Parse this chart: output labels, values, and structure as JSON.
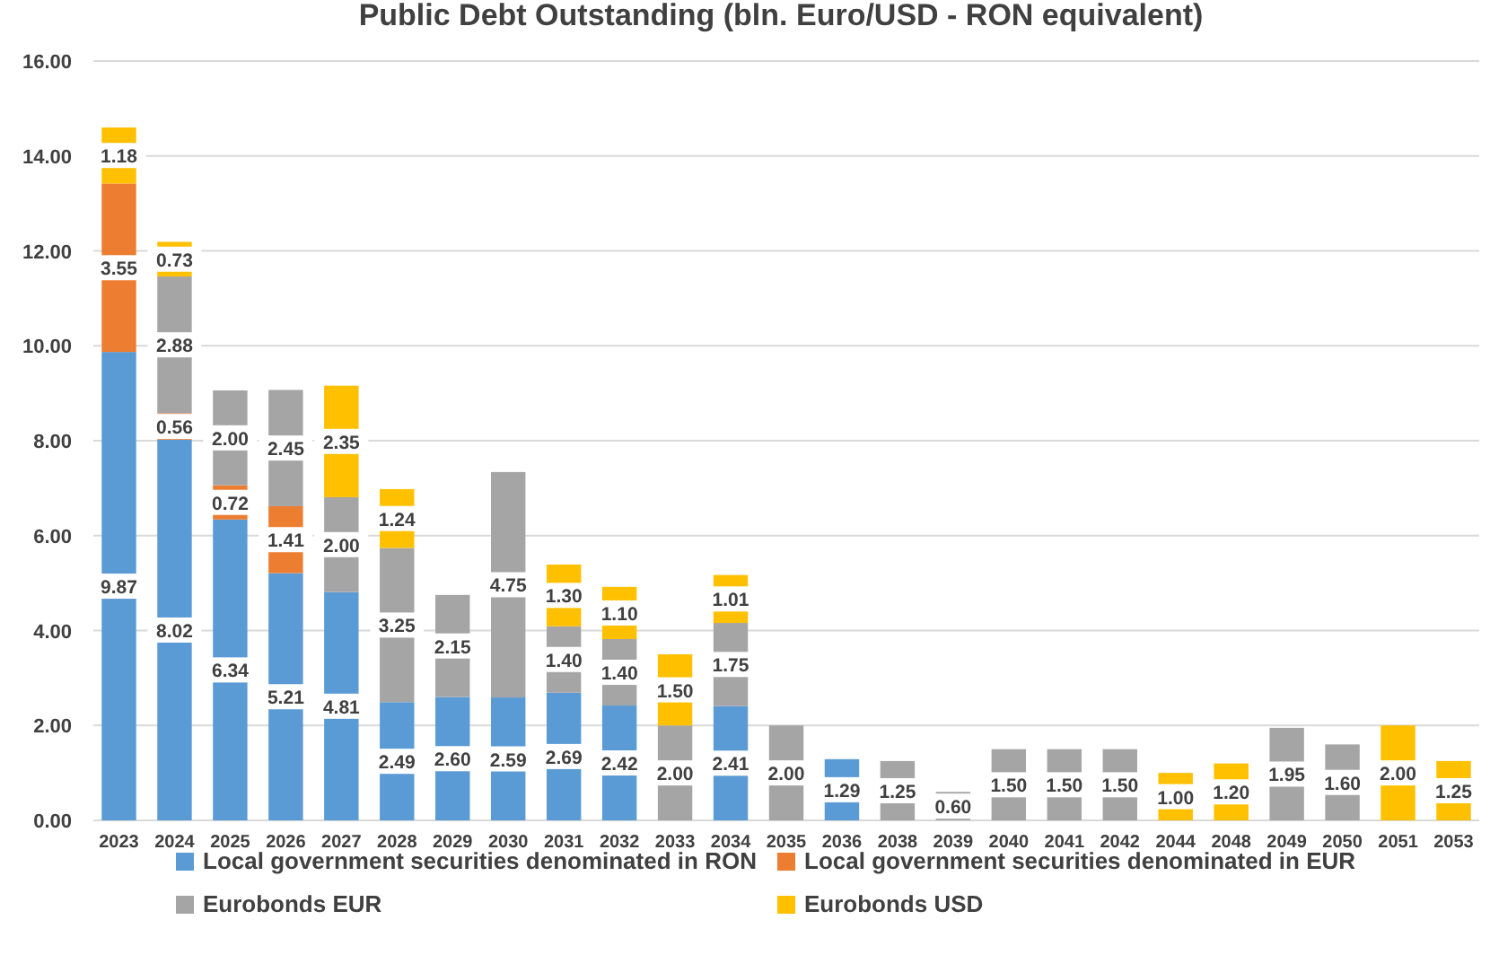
{
  "chart_data": {
    "type": "bar",
    "stacked": true,
    "title": "Public Debt Outstanding (bln. Euro/USD - RON equivalent)",
    "categories": [
      "2023",
      "2024",
      "2025",
      "2026",
      "2027",
      "2028",
      "2029",
      "2030",
      "2031",
      "2032",
      "2033",
      "2034",
      "2035",
      "2036",
      "2038",
      "2039",
      "2040",
      "2041",
      "2042",
      "2044",
      "2048",
      "2049",
      "2050",
      "2051",
      "2053"
    ],
    "series": [
      {
        "name": "Local government securities denominated in RON",
        "color": "#5b9bd5",
        "values": [
          9.87,
          8.02,
          6.34,
          5.21,
          4.81,
          2.49,
          2.6,
          2.59,
          2.69,
          2.42,
          null,
          2.41,
          null,
          1.29,
          null,
          null,
          null,
          null,
          null,
          null,
          null,
          null,
          null,
          null,
          null
        ],
        "value_labels": [
          "9.87",
          "8.02",
          "6.34",
          "5.21",
          "4.81",
          "2.49",
          "2.60",
          "2.59",
          "2.69",
          "2.42",
          null,
          "2.41",
          null,
          "1.29",
          null,
          null,
          null,
          null,
          null,
          null,
          null,
          null,
          null,
          null,
          null
        ]
      },
      {
        "name": "Local government securities denominated in EUR",
        "color": "#ed7d31",
        "values": [
          3.55,
          0.56,
          0.72,
          1.41,
          null,
          null,
          null,
          null,
          null,
          null,
          null,
          null,
          null,
          null,
          null,
          null,
          null,
          null,
          null,
          null,
          null,
          null,
          null,
          null,
          null
        ],
        "value_labels": [
          "3.55",
          "0.56",
          "0.72",
          "1.41",
          null,
          null,
          null,
          null,
          null,
          null,
          null,
          null,
          null,
          null,
          null,
          null,
          null,
          null,
          null,
          null,
          null,
          null,
          null,
          null,
          null
        ]
      },
      {
        "name": "Eurobonds EUR",
        "color": "#a5a5a5",
        "values": [
          null,
          2.88,
          2.0,
          2.45,
          2.0,
          3.25,
          2.15,
          4.75,
          1.4,
          1.4,
          2.0,
          1.75,
          2.0,
          null,
          1.25,
          0.6,
          1.5,
          1.5,
          1.5,
          null,
          null,
          1.95,
          1.6,
          null,
          null
        ],
        "value_labels": [
          null,
          "2.88",
          "2.00",
          "2.45",
          "2.00",
          "3.25",
          "2.15",
          "4.75",
          "1.40",
          "1.40",
          "2.00",
          "1.75",
          "2.00",
          null,
          "1.25",
          "0.60",
          "1.50",
          "1.50",
          "1.50",
          null,
          null,
          "1.95",
          "1.60",
          null,
          null
        ]
      },
      {
        "name": "Eurobonds USD",
        "color": "#ffc000",
        "values": [
          1.18,
          0.73,
          null,
          null,
          2.35,
          1.24,
          null,
          null,
          1.3,
          1.1,
          1.5,
          1.01,
          null,
          null,
          null,
          null,
          null,
          null,
          null,
          1.0,
          1.2,
          null,
          null,
          2.0,
          1.25
        ],
        "value_labels": [
          "1.18",
          "0.73",
          null,
          null,
          "2.35",
          "1.24",
          null,
          null,
          "1.30",
          "1.10",
          "1.50",
          "1.01",
          null,
          null,
          null,
          null,
          null,
          null,
          null,
          "1.00",
          "1.20",
          null,
          null,
          "2.00",
          "1.25"
        ]
      }
    ],
    "ylim": [
      0,
      16
    ],
    "yticks": [
      {
        "value": 0,
        "label": "0.00"
      },
      {
        "value": 2,
        "label": "2.00"
      },
      {
        "value": 4,
        "label": "4.00"
      },
      {
        "value": 6,
        "label": "6.00"
      },
      {
        "value": 8,
        "label": "8.00"
      },
      {
        "value": 10,
        "label": "10.00"
      },
      {
        "value": 12,
        "label": "12.00"
      },
      {
        "value": 14,
        "label": "14.00"
      },
      {
        "value": 16,
        "label": "16.00"
      }
    ],
    "grid": "y",
    "legend": "bottom"
  }
}
